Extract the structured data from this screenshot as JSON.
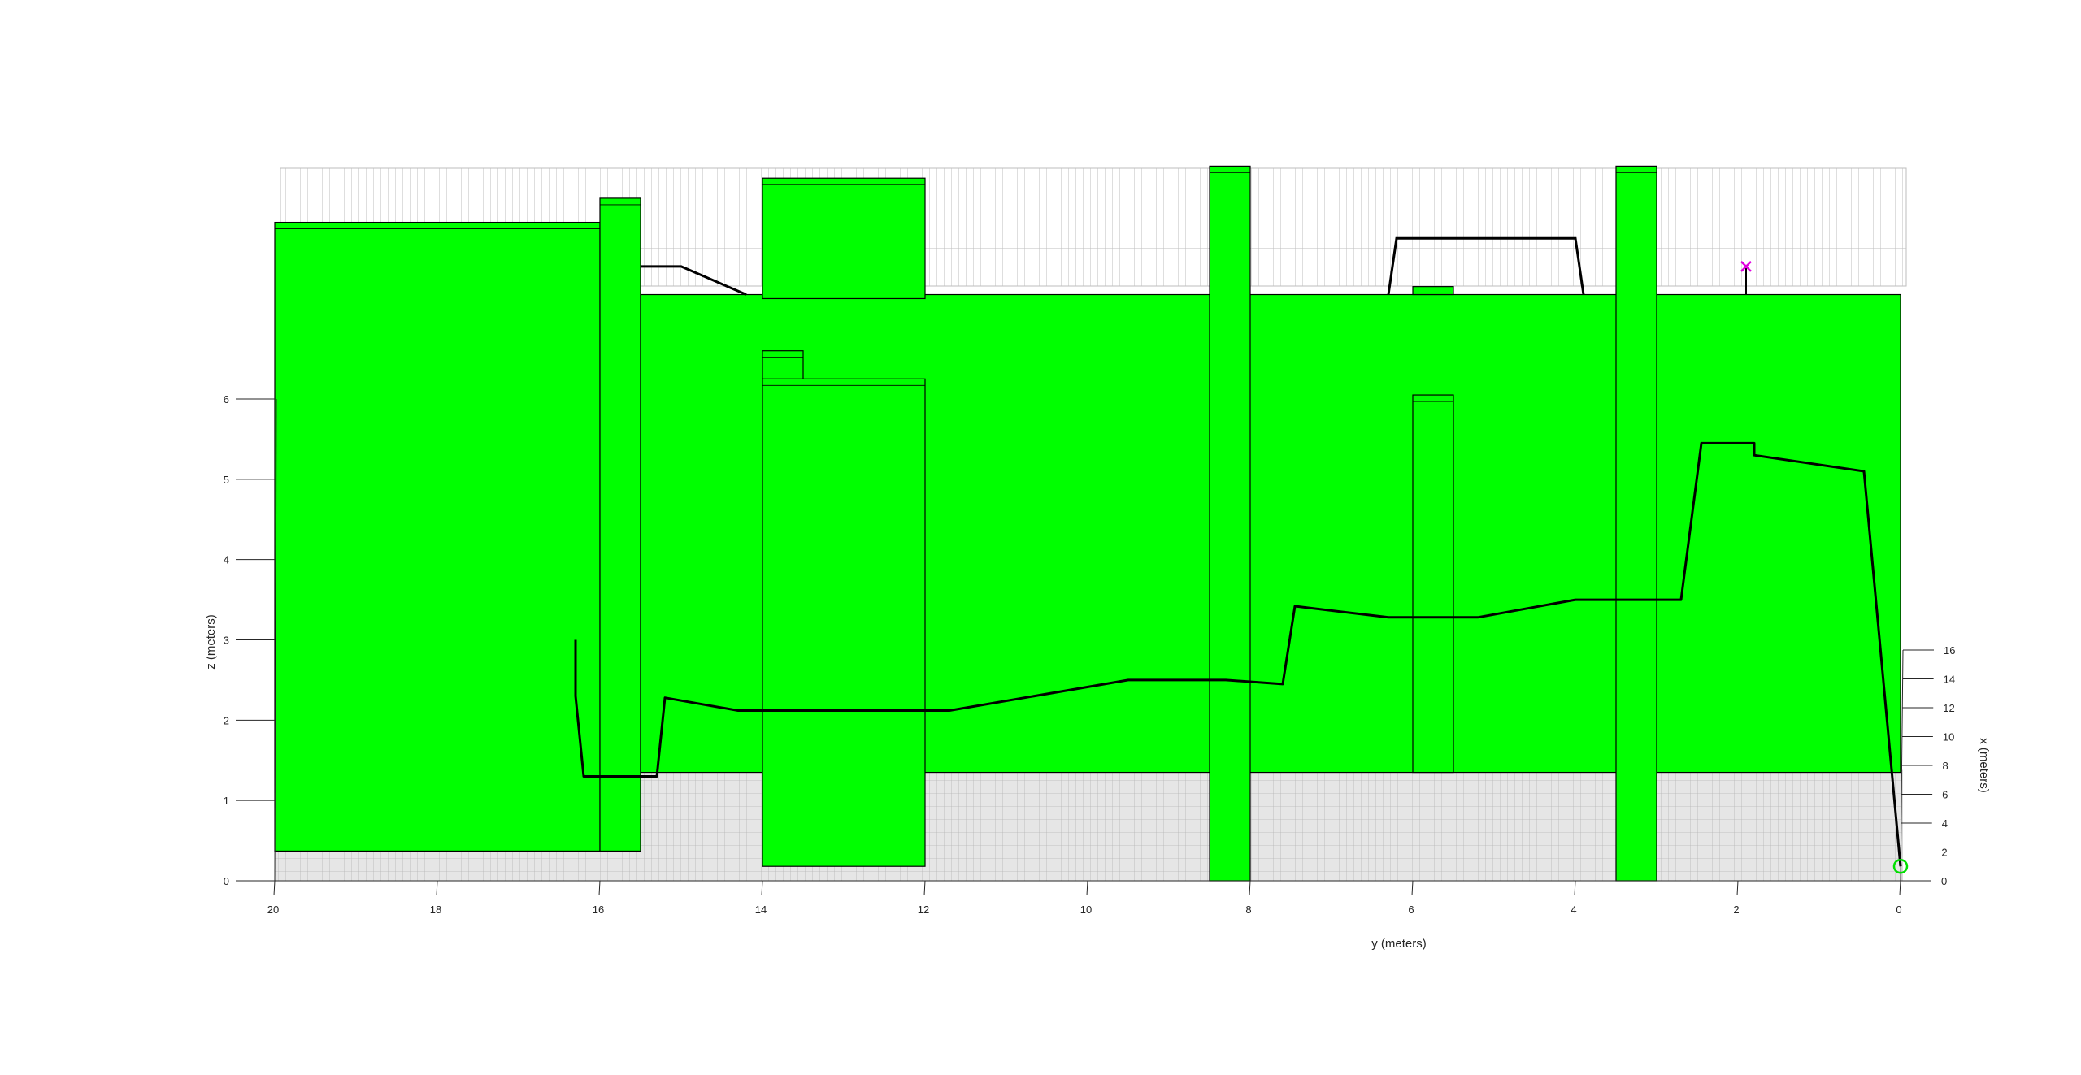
{
  "chart_data": {
    "type": "3d-path-obstacles",
    "title": "",
    "view": "elevation view, y axis reversed",
    "xlabel": "y (meters)",
    "ylabel": "z (meters)",
    "zlabel": "x (meters)",
    "y_axis": {
      "range": [
        0,
        20
      ],
      "reversed": true,
      "ticks": [
        "20",
        "18",
        "16",
        "14",
        "12",
        "10",
        "8",
        "6",
        "4",
        "2",
        "0"
      ]
    },
    "z_axis": {
      "range": [
        0,
        6
      ],
      "ticks": [
        "0",
        "1",
        "2",
        "3",
        "4",
        "5",
        "6"
      ]
    },
    "x_axis": {
      "range": [
        0,
        16
      ],
      "ticks": [
        "0",
        "2",
        "4",
        "6",
        "8",
        "10",
        "12",
        "14",
        "16"
      ]
    },
    "obstacle_color": "#00ff00",
    "floor_color": "#e6e6e6",
    "path_color": "#000000",
    "start_marker": {
      "symbol": "circle",
      "color": "#00e000",
      "y": 0.0,
      "z": 0.18
    },
    "goal_marker": {
      "symbol": "x",
      "color": "#e000e0",
      "y": 1.9,
      "z": 7.65
    },
    "obstacles": [
      {
        "id": "left-block",
        "y": [
          16.0,
          20.0
        ],
        "z": [
          0.37,
          8.2
        ]
      },
      {
        "id": "left-pillar",
        "y": [
          15.5,
          16.0
        ],
        "z": [
          0.37,
          8.5
        ]
      },
      {
        "id": "back-wall",
        "y": [
          0.0,
          15.5
        ],
        "z": [
          1.35,
          7.3
        ]
      },
      {
        "id": "top-box",
        "y": [
          12.0,
          14.0
        ],
        "z": [
          7.25,
          8.75
        ]
      },
      {
        "id": "mid-tall-block",
        "y": [
          12.0,
          14.0
        ],
        "z": [
          0.18,
          6.25
        ]
      },
      {
        "id": "mid-small-cap",
        "y": [
          13.5,
          14.0
        ],
        "z": [
          6.25,
          6.6
        ]
      },
      {
        "id": "pillar-y8",
        "y": [
          8.0,
          8.5
        ],
        "z": [
          0.0,
          8.9
        ]
      },
      {
        "id": "thin-column-y6",
        "y": [
          5.5,
          6.0
        ],
        "z": [
          1.35,
          6.05
        ]
      },
      {
        "id": "small-top-bump",
        "y": [
          5.5,
          6.0
        ],
        "z": [
          7.3,
          7.4
        ]
      },
      {
        "id": "pillar-y3",
        "y": [
          3.0,
          3.5
        ],
        "z": [
          0.0,
          8.9
        ]
      }
    ],
    "path": [
      {
        "y": 0.0,
        "z": 0.18
      },
      {
        "y": 0.45,
        "z": 5.1
      },
      {
        "y": 1.8,
        "z": 5.3
      },
      {
        "y": 1.8,
        "z": 5.45
      },
      {
        "y": 2.45,
        "z": 5.45
      },
      {
        "y": 2.7,
        "z": 3.5
      },
      {
        "y": 4.0,
        "z": 3.5
      },
      {
        "y": 5.2,
        "z": 3.28
      },
      {
        "y": 6.3,
        "z": 3.28
      },
      {
        "y": 7.45,
        "z": 3.42
      },
      {
        "y": 7.6,
        "z": 2.45
      },
      {
        "y": 8.3,
        "z": 2.5
      },
      {
        "y": 9.5,
        "z": 2.5
      },
      {
        "y": 11.7,
        "z": 2.12
      },
      {
        "y": 14.3,
        "z": 2.12
      },
      {
        "y": 15.2,
        "z": 2.28
      },
      {
        "y": 15.3,
        "z": 1.3
      },
      {
        "y": 16.2,
        "z": 1.3
      },
      {
        "y": 16.3,
        "z": 2.3
      },
      {
        "y": 16.3,
        "z": 3.0
      }
    ],
    "path_upper": [
      {
        "y": 3.9,
        "z": 7.3
      },
      {
        "y": 4.0,
        "z": 8.0
      },
      {
        "y": 6.2,
        "z": 8.0
      },
      {
        "y": 6.3,
        "z": 7.3
      }
    ],
    "path_upper_left": [
      {
        "y": 15.5,
        "z": 7.65
      },
      {
        "y": 15.0,
        "z": 7.65
      },
      {
        "y": 14.2,
        "z": 7.3
      }
    ]
  }
}
